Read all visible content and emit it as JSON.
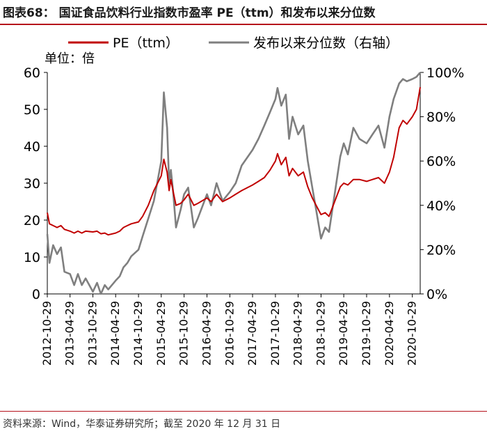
{
  "figure": {
    "title": "图表68： 国证食品饮料行业指数市盈率 PE（ttm）和发布以来分位数",
    "source": "资料来源：Wind，华泰证券研究所；截至 2020 年 12 月 31 日"
  },
  "chart_data": {
    "type": "line",
    "unit_label": "单位：倍",
    "left_axis": {
      "ylim": [
        0,
        60
      ],
      "ticks": [
        "0",
        "10",
        "20",
        "30",
        "40",
        "50",
        "60"
      ]
    },
    "right_axis": {
      "ylim": [
        0,
        100
      ],
      "ticks": [
        "0%",
        "20%",
        "40%",
        "60%",
        "80%",
        "100%"
      ]
    },
    "x_ticks": [
      "2012-10-29",
      "2013-04-29",
      "2013-10-29",
      "2014-04-29",
      "2014-10-29",
      "2015-04-29",
      "2015-10-29",
      "2016-04-29",
      "2016-10-29",
      "2017-04-29",
      "2017-10-29",
      "2018-04-29",
      "2018-10-29",
      "2019-04-29",
      "2019-10-29",
      "2020-04-29",
      "2020-10-29"
    ],
    "x_range": [
      "2012-10-29",
      "2020-12-31"
    ],
    "legend": {
      "placement": "top"
    },
    "series": [
      {
        "name": "PE（ttm）",
        "axis": "left",
        "color": "#c00000",
        "points": [
          [
            "2012-10-29",
            22
          ],
          [
            "2012-11-15",
            19
          ],
          [
            "2012-12-15",
            18.5
          ],
          [
            "2013-01-15",
            18
          ],
          [
            "2013-02-15",
            18.5
          ],
          [
            "2013-03-15",
            17.5
          ],
          [
            "2013-04-29",
            17
          ],
          [
            "2013-06-01",
            16.5
          ],
          [
            "2013-07-01",
            17
          ],
          [
            "2013-08-01",
            16.5
          ],
          [
            "2013-09-01",
            17
          ],
          [
            "2013-10-29",
            16.8
          ],
          [
            "2013-12-01",
            17
          ],
          [
            "2014-01-01",
            16.3
          ],
          [
            "2014-02-01",
            16.5
          ],
          [
            "2014-03-01",
            16
          ],
          [
            "2014-04-29",
            16.5
          ],
          [
            "2014-06-01",
            17
          ],
          [
            "2014-07-01",
            18
          ],
          [
            "2014-08-01",
            18.5
          ],
          [
            "2014-09-01",
            19
          ],
          [
            "2014-10-29",
            19.5
          ],
          [
            "2014-12-01",
            21
          ],
          [
            "2015-01-15",
            24
          ],
          [
            "2015-03-01",
            28
          ],
          [
            "2015-04-29",
            32
          ],
          [
            "2015-05-20",
            36.5
          ],
          [
            "2015-06-15",
            33
          ],
          [
            "2015-07-01",
            28
          ],
          [
            "2015-07-15",
            31
          ],
          [
            "2015-08-01",
            28
          ],
          [
            "2015-08-25",
            24
          ],
          [
            "2015-10-01",
            24.5
          ],
          [
            "2015-10-29",
            25.5
          ],
          [
            "2015-12-01",
            27
          ],
          [
            "2016-01-15",
            24
          ],
          [
            "2016-02-15",
            24.5
          ],
          [
            "2016-04-29",
            26
          ],
          [
            "2016-06-01",
            25
          ],
          [
            "2016-07-15",
            27
          ],
          [
            "2016-09-01",
            25
          ],
          [
            "2016-10-29",
            26
          ],
          [
            "2016-12-15",
            27
          ],
          [
            "2017-02-01",
            28
          ],
          [
            "2017-04-29",
            29.5
          ],
          [
            "2017-06-15",
            30.5
          ],
          [
            "2017-08-01",
            31.5
          ],
          [
            "2017-09-15",
            33.5
          ],
          [
            "2017-10-29",
            36
          ],
          [
            "2017-11-15",
            38
          ],
          [
            "2017-12-15",
            35
          ],
          [
            "2018-01-20",
            37
          ],
          [
            "2018-02-15",
            32
          ],
          [
            "2018-03-15",
            34
          ],
          [
            "2018-04-29",
            32
          ],
          [
            "2018-06-10",
            33
          ],
          [
            "2018-07-15",
            29
          ],
          [
            "2018-08-20",
            26
          ],
          [
            "2018-09-20",
            24
          ],
          [
            "2018-10-29",
            21.5
          ],
          [
            "2018-12-01",
            22
          ],
          [
            "2019-01-01",
            21
          ],
          [
            "2019-02-15",
            25
          ],
          [
            "2019-04-01",
            29
          ],
          [
            "2019-04-29",
            30
          ],
          [
            "2019-06-01",
            29.5
          ],
          [
            "2019-07-15",
            31
          ],
          [
            "2019-09-01",
            31
          ],
          [
            "2019-10-29",
            30.5
          ],
          [
            "2019-12-15",
            31
          ],
          [
            "2020-02-01",
            31.5
          ],
          [
            "2020-03-20",
            30
          ],
          [
            "2020-04-29",
            33
          ],
          [
            "2020-06-01",
            37
          ],
          [
            "2020-07-15",
            45
          ],
          [
            "2020-08-15",
            47
          ],
          [
            "2020-09-15",
            46
          ],
          [
            "2020-10-29",
            48
          ],
          [
            "2020-12-01",
            50
          ],
          [
            "2020-12-31",
            56
          ]
        ]
      },
      {
        "name": "发布以来分位数（右轴）",
        "axis": "right",
        "color": "#7f7f7f",
        "points": [
          [
            "2012-10-29",
            27
          ],
          [
            "2012-11-15",
            14
          ],
          [
            "2012-12-15",
            22
          ],
          [
            "2013-01-15",
            18
          ],
          [
            "2013-02-15",
            21
          ],
          [
            "2013-03-15",
            10
          ],
          [
            "2013-04-29",
            9
          ],
          [
            "2013-06-01",
            4
          ],
          [
            "2013-07-01",
            9
          ],
          [
            "2013-08-01",
            4
          ],
          [
            "2013-09-01",
            7
          ],
          [
            "2013-10-29",
            1
          ],
          [
            "2013-12-01",
            5
          ],
          [
            "2014-01-01",
            0
          ],
          [
            "2014-02-01",
            4
          ],
          [
            "2014-03-01",
            2
          ],
          [
            "2014-04-29",
            6
          ],
          [
            "2014-06-01",
            8
          ],
          [
            "2014-07-01",
            12
          ],
          [
            "2014-08-01",
            14
          ],
          [
            "2014-09-01",
            17
          ],
          [
            "2014-10-29",
            20
          ],
          [
            "2014-12-01",
            26
          ],
          [
            "2015-01-15",
            34
          ],
          [
            "2015-03-01",
            42
          ],
          [
            "2015-04-29",
            60
          ],
          [
            "2015-05-20",
            91
          ],
          [
            "2015-06-15",
            75
          ],
          [
            "2015-07-01",
            50
          ],
          [
            "2015-07-15",
            56
          ],
          [
            "2015-08-01",
            47
          ],
          [
            "2015-08-25",
            30
          ],
          [
            "2015-10-01",
            38
          ],
          [
            "2015-10-29",
            45
          ],
          [
            "2015-12-01",
            48
          ],
          [
            "2016-01-15",
            30
          ],
          [
            "2016-02-15",
            34
          ],
          [
            "2016-04-29",
            45
          ],
          [
            "2016-06-01",
            40
          ],
          [
            "2016-07-15",
            50
          ],
          [
            "2016-09-01",
            42
          ],
          [
            "2016-10-29",
            46
          ],
          [
            "2016-12-15",
            50
          ],
          [
            "2017-02-01",
            58
          ],
          [
            "2017-04-29",
            65
          ],
          [
            "2017-06-15",
            70
          ],
          [
            "2017-08-01",
            76
          ],
          [
            "2017-09-15",
            82
          ],
          [
            "2017-10-29",
            88
          ],
          [
            "2017-11-15",
            93
          ],
          [
            "2017-12-15",
            85
          ],
          [
            "2018-01-20",
            90
          ],
          [
            "2018-02-15",
            70
          ],
          [
            "2018-03-15",
            80
          ],
          [
            "2018-04-29",
            72
          ],
          [
            "2018-06-10",
            76
          ],
          [
            "2018-07-15",
            60
          ],
          [
            "2018-08-20",
            48
          ],
          [
            "2018-09-20",
            38
          ],
          [
            "2018-10-29",
            25
          ],
          [
            "2018-12-01",
            30
          ],
          [
            "2019-01-01",
            28
          ],
          [
            "2019-02-15",
            45
          ],
          [
            "2019-04-01",
            62
          ],
          [
            "2019-04-29",
            68
          ],
          [
            "2019-06-01",
            63
          ],
          [
            "2019-07-15",
            75
          ],
          [
            "2019-09-01",
            70
          ],
          [
            "2019-10-29",
            68
          ],
          [
            "2019-12-15",
            72
          ],
          [
            "2020-02-01",
            76
          ],
          [
            "2020-03-20",
            66
          ],
          [
            "2020-04-29",
            80
          ],
          [
            "2020-06-01",
            88
          ],
          [
            "2020-07-15",
            95
          ],
          [
            "2020-08-15",
            97
          ],
          [
            "2020-09-15",
            96
          ],
          [
            "2020-10-29",
            97
          ],
          [
            "2020-12-01",
            98
          ],
          [
            "2020-12-31",
            100
          ]
        ]
      }
    ]
  }
}
